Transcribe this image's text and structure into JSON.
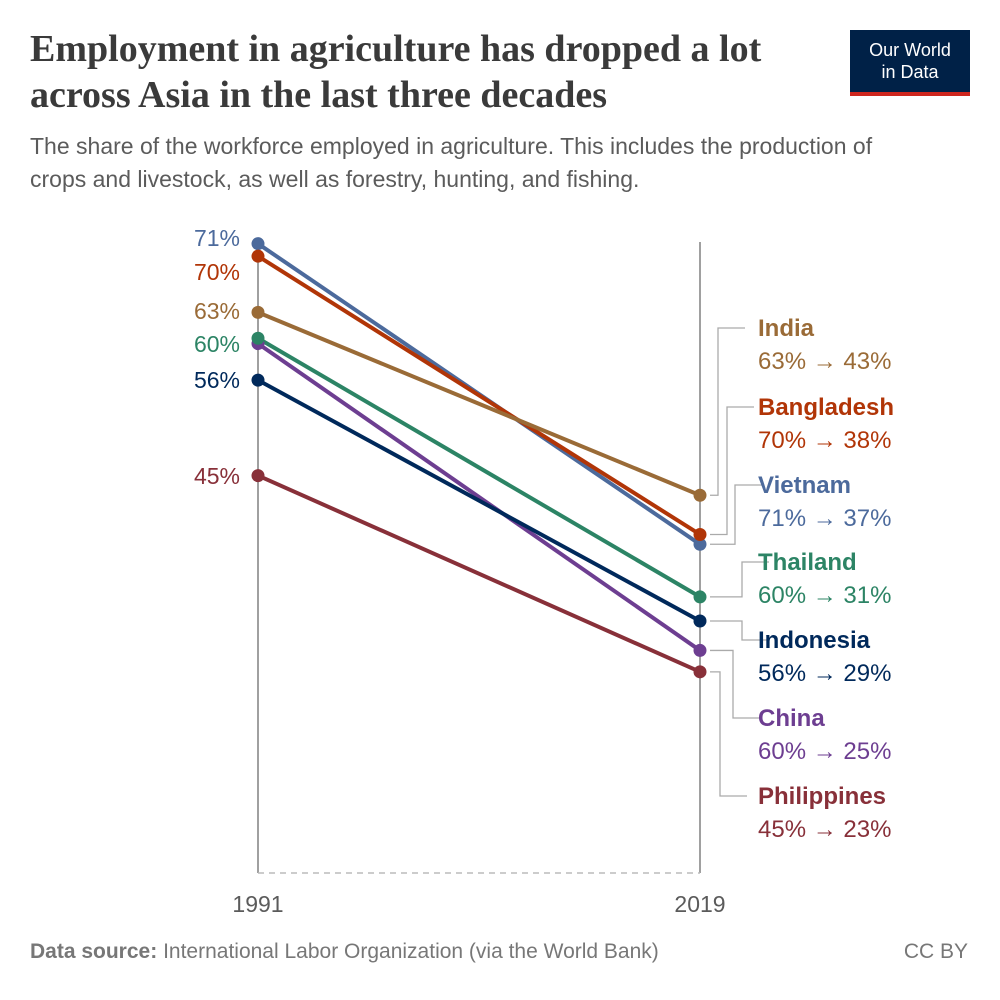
{
  "header": {
    "title": "Employment in agriculture has dropped a lot across Asia in the last three decades",
    "subtitle": "The share of the workforce employed in agriculture. This includes the production of crops and livestock, as well as forestry, hunting, and fishing.",
    "logo_line1": "Our World",
    "logo_line2": "in Data",
    "logo_bg": "#002147",
    "logo_accent": "#ce261e"
  },
  "footer": {
    "source_label": "Data source:",
    "source_text": "International Labor Organization (via the World Bank)",
    "license": "CC BY"
  },
  "chart_data": {
    "type": "line",
    "title": "Employment in agriculture has dropped a lot across Asia in the last three decades",
    "x": [
      "1991",
      "2019"
    ],
    "ylim": [
      0,
      75
    ],
    "grid": false,
    "legend": "right (inline labels)",
    "series": [
      {
        "name": "India",
        "values": [
          63.3,
          42.8
        ],
        "start_label": "63%",
        "end_label": "63% → 43%",
        "color": "#9a6b37"
      },
      {
        "name": "Bangladesh",
        "values": [
          69.6,
          38.4
        ],
        "start_label": "70%",
        "end_label": "70% → 38%",
        "color": "#b13507"
      },
      {
        "name": "Vietnam",
        "values": [
          71.0,
          37.3
        ],
        "start_label": "71%",
        "end_label": "71% → 37%",
        "color": "#4c6a9c"
      },
      {
        "name": "Thailand",
        "values": [
          60.4,
          31.4
        ],
        "start_label": "60%",
        "end_label": "60% → 31%",
        "color": "#2c8465"
      },
      {
        "name": "Indonesia",
        "values": [
          55.7,
          28.7
        ],
        "start_label": "56%",
        "end_label": "56% → 29%",
        "color": "#00295b"
      },
      {
        "name": "China",
        "values": [
          59.8,
          25.4
        ],
        "start_label": "",
        "end_label": "60% → 25%",
        "color": "#6d3e91"
      },
      {
        "name": "Philippines",
        "values": [
          45.0,
          23.0
        ],
        "start_label": "45%",
        "end_label": "45% → 23%",
        "color": "#883039"
      }
    ]
  }
}
